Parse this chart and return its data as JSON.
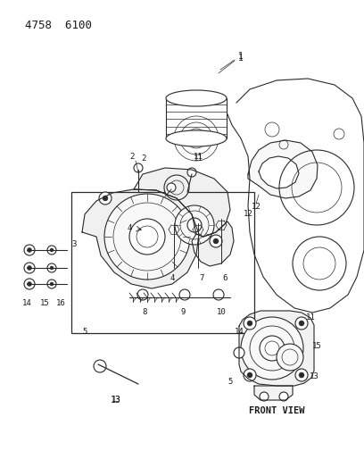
{
  "title": "4758  6100",
  "background_color": "#ffffff",
  "line_color": "#2a2a2a",
  "text_color": "#1a1a1a",
  "front_view_label": "FRONT VIEW",
  "figsize": [
    4.08,
    5.33
  ],
  "dpi": 100
}
